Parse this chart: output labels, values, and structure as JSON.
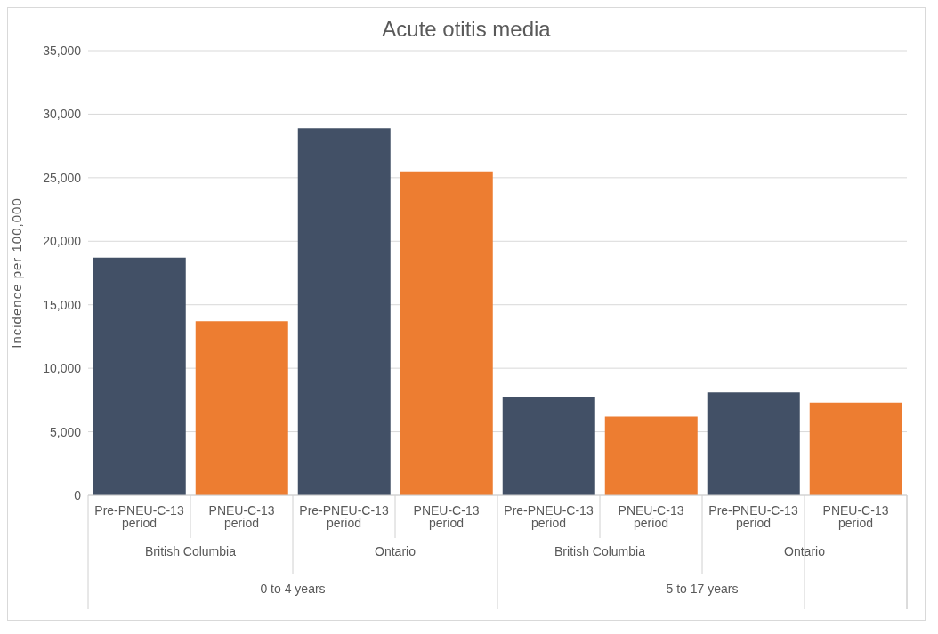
{
  "chart_data": {
    "type": "bar",
    "title": "Acute otitis media",
    "ylabel": "Incidence per 100,000",
    "categories": [
      "Pre-PNEU-C-13 period",
      "PNEU-C-13 period",
      "Pre-PNEU-C-13 period",
      "PNEU-C-13 period",
      "Pre-PNEU-C-13 period",
      "PNEU-C-13 period",
      "Pre-PNEU-C-13 period",
      "PNEU-C-13 period"
    ],
    "values": [
      18700,
      13700,
      28900,
      25500,
      7700,
      6200,
      8100,
      7300
    ],
    "colors": [
      "#425066",
      "#ed7d31",
      "#425066",
      "#ed7d31",
      "#425066",
      "#ed7d31",
      "#425066",
      "#ed7d31"
    ],
    "annotations": [
      "British Columbia",
      "Ontario",
      "British Columbia",
      "Ontario",
      "0 to 4 years",
      "5 to 17 years"
    ],
    "ylim": [
      0,
      35000
    ],
    "yticks": [
      {
        "value": 0,
        "label": "0"
      },
      {
        "value": 5000,
        "label": "5,000"
      },
      {
        "value": 10000,
        "label": "10,000"
      },
      {
        "value": 15000,
        "label": "15,000"
      },
      {
        "value": 20000,
        "label": "20,000"
      },
      {
        "value": 25000,
        "label": "25,000"
      },
      {
        "value": 30000,
        "label": "30,000"
      },
      {
        "value": 35000,
        "label": "35,000"
      }
    ],
    "grid": "y",
    "legend": false
  }
}
